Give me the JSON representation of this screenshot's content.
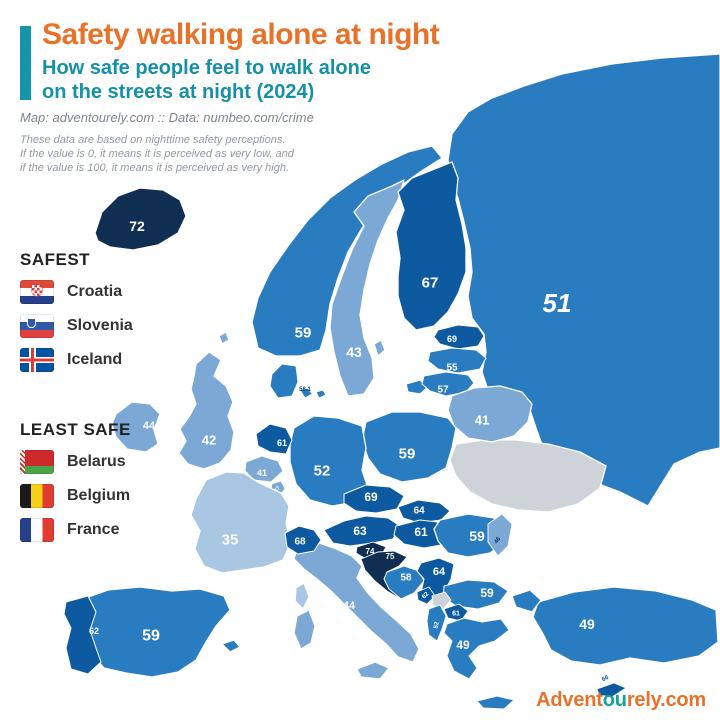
{
  "header": {
    "title": "Safety walking alone at night",
    "subtitle_line1": "How safe people feel to walk alone",
    "subtitle_line2": "on the streets at night (2024)",
    "source": "Map: adventourely.com :: Data: numbeo.com/crime",
    "note_line1": "These data are based on nighttime safety perceptions.",
    "note_line2": "If the value is 0, it means it is perceived as very low, and",
    "note_line3": "if the value is 100, it means it is perceived as very high."
  },
  "legend": {
    "safest": {
      "heading": "SAFEST",
      "items": [
        {
          "country": "Croatia",
          "flag": "croatia"
        },
        {
          "country": "Slovenia",
          "flag": "slovenia"
        },
        {
          "country": "Iceland",
          "flag": "iceland"
        }
      ]
    },
    "least_safe": {
      "heading": "LEAST SAFE",
      "items": [
        {
          "country": "Belarus",
          "flag": "belarus"
        },
        {
          "country": "Belgium",
          "flag": "belgium"
        },
        {
          "country": "France",
          "flag": "france"
        }
      ]
    }
  },
  "footer": {
    "brand_prefix": "Advent",
    "brand_mid": "ou",
    "brand_suffix": "rely.com"
  },
  "colors": {
    "accent_orange": "#E8722A",
    "accent_teal": "#1596A8",
    "map_no_data": "#CDD3D9",
    "tier_below_40": "#A9C7E3",
    "tier_40s": "#7BA8D5",
    "tier_50s": "#2A7CC1",
    "tier_60s": "#0E5AA0",
    "tier_70s": "#0F2E52",
    "label_white": "#FFFFFF",
    "label_dark": "#123A63"
  },
  "map": {
    "countries": [
      {
        "id": "russia",
        "name": "Russia",
        "value": "51"
      },
      {
        "id": "ukraine",
        "name": "Ukraine",
        "value": null
      },
      {
        "id": "norway",
        "name": "Norway",
        "value": "59"
      },
      {
        "id": "sweden",
        "name": "Sweden",
        "value": "43"
      },
      {
        "id": "finland",
        "name": "Finland",
        "value": "67"
      },
      {
        "id": "iceland",
        "name": "Iceland",
        "value": "72"
      },
      {
        "id": "estonia",
        "name": "Estonia",
        "value": "69"
      },
      {
        "id": "latvia",
        "name": "Latvia",
        "value": "55"
      },
      {
        "id": "lithuania",
        "name": "Lithuania",
        "value": "57"
      },
      {
        "id": "belarus",
        "name": "Belarus",
        "value": "41"
      },
      {
        "id": "poland",
        "name": "Poland",
        "value": "59"
      },
      {
        "id": "germany",
        "name": "Germany",
        "value": "52"
      },
      {
        "id": "denmark",
        "name": "Denmark",
        "value": "58.1"
      },
      {
        "id": "netherlands",
        "name": "Netherlands",
        "value": "61"
      },
      {
        "id": "belgium",
        "name": "Belgium",
        "value": "41"
      },
      {
        "id": "luxembourg",
        "name": "Luxembourg",
        "value": "47"
      },
      {
        "id": "ireland",
        "name": "Ireland",
        "value": "44"
      },
      {
        "id": "uk",
        "name": "United Kingdom",
        "value": "42"
      },
      {
        "id": "france",
        "name": "France",
        "value": "35"
      },
      {
        "id": "spain",
        "name": "Spain",
        "value": "59"
      },
      {
        "id": "portugal",
        "name": "Portugal",
        "value": "62"
      },
      {
        "id": "italy",
        "name": "Italy",
        "value": "44"
      },
      {
        "id": "switzerland",
        "name": "Switzerland",
        "value": "68"
      },
      {
        "id": "czechia",
        "name": "Czechia",
        "value": "69"
      },
      {
        "id": "slovakia",
        "name": "Slovakia",
        "value": "64"
      },
      {
        "id": "austria",
        "name": "Austria",
        "value": "63"
      },
      {
        "id": "hungary",
        "name": "Hungary",
        "value": "61"
      },
      {
        "id": "slovenia",
        "name": "Slovenia",
        "value": "74"
      },
      {
        "id": "croatia",
        "name": "Croatia",
        "value": "75"
      },
      {
        "id": "bosnia",
        "name": "Bosnia and Herzegovina",
        "value": "58"
      },
      {
        "id": "serbia",
        "name": "Serbia",
        "value": "64"
      },
      {
        "id": "romania",
        "name": "Romania",
        "value": "59"
      },
      {
        "id": "bulgaria",
        "name": "Bulgaria",
        "value": "59"
      },
      {
        "id": "montenegro",
        "name": "Montenegro",
        "value": "62"
      },
      {
        "id": "kosovo",
        "name": "Kosovo",
        "value": null
      },
      {
        "id": "macedonia",
        "name": "North Macedonia",
        "value": "61"
      },
      {
        "id": "albania",
        "name": "Albania",
        "value": "52"
      },
      {
        "id": "greece",
        "name": "Greece",
        "value": "49"
      },
      {
        "id": "moldova",
        "name": "Moldova",
        "value": "46"
      },
      {
        "id": "turkey",
        "name": "Turkey",
        "value": "49"
      },
      {
        "id": "cyprus",
        "name": "Cyprus",
        "value": "66"
      }
    ]
  }
}
